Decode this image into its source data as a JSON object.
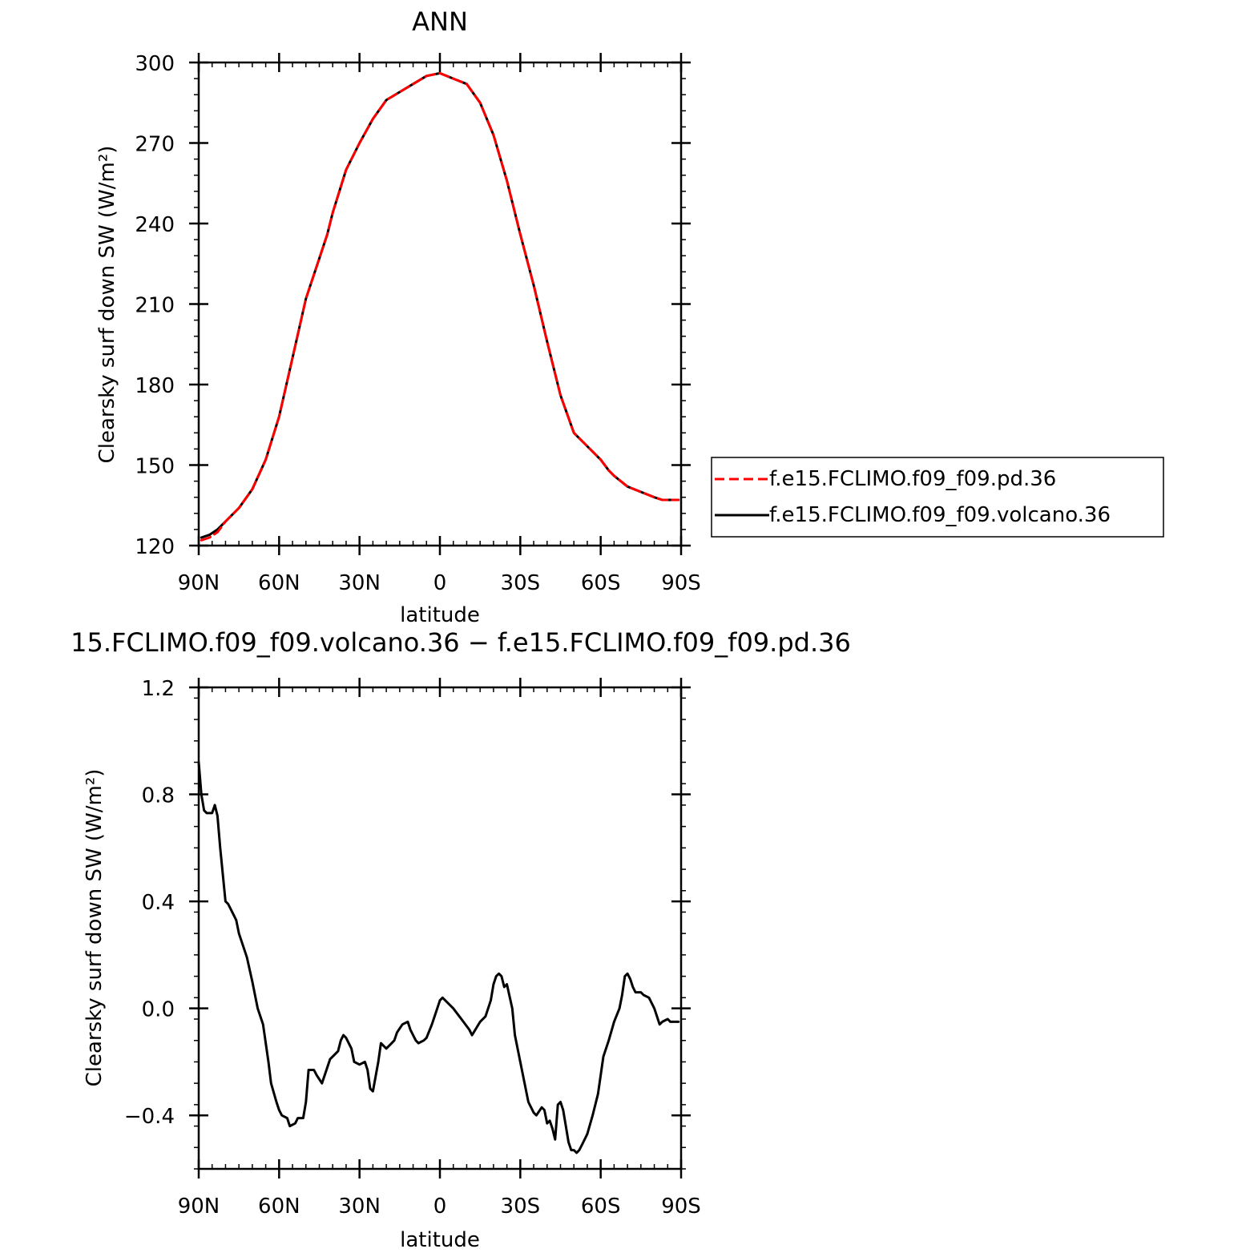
{
  "chart_data": [
    {
      "type": "line",
      "title": "ANN",
      "xlabel": "latitude",
      "ylabel": "Clearsky surf down SW (W/m²)",
      "xlim": [
        90,
        -90
      ],
      "ylim": [
        120,
        300
      ],
      "xticks": [
        {
          "value": 90,
          "label": "90N"
        },
        {
          "value": 60,
          "label": "60N"
        },
        {
          "value": 30,
          "label": "30N"
        },
        {
          "value": 0,
          "label": "0"
        },
        {
          "value": -30,
          "label": "30S"
        },
        {
          "value": -60,
          "label": "60S"
        },
        {
          "value": -90,
          "label": "90S"
        }
      ],
      "yticks": [
        {
          "value": 300,
          "label": "300"
        },
        {
          "value": 270,
          "label": "270"
        },
        {
          "value": 240,
          "label": "240"
        },
        {
          "value": 210,
          "label": "210"
        },
        {
          "value": 180,
          "label": "180"
        },
        {
          "value": 150,
          "label": "150"
        },
        {
          "value": 120,
          "label": "120"
        }
      ],
      "legend_placement": "right",
      "series": [
        {
          "name": "f.e15.FCLIMO.f09_f09.volcano.36",
          "color": "#000000",
          "dash": "solid",
          "x": [
            89,
            86,
            83,
            80,
            75,
            70,
            65,
            60,
            55,
            50,
            45,
            42,
            40,
            35,
            30,
            25,
            20,
            15,
            10,
            5,
            0,
            -5,
            -10,
            -15,
            -20,
            -25,
            -30,
            -35,
            -40,
            -45,
            -50,
            -55,
            -60,
            -63,
            -65,
            -70,
            -75,
            -80,
            -83,
            -85,
            -87,
            -89
          ],
          "values": [
            123,
            124,
            126,
            129,
            134,
            141,
            152,
            168,
            190,
            212,
            227,
            236,
            244,
            260,
            270,
            279,
            286,
            289,
            292,
            295,
            296,
            294,
            292,
            285,
            273,
            256,
            236,
            217,
            196,
            176,
            162,
            157,
            152,
            148,
            146,
            142,
            140,
            138,
            137,
            137,
            137,
            137
          ]
        },
        {
          "name": "f.e15.FCLIMO.f09_f09.pd.36",
          "color": "#ff0000",
          "dash": "dashed",
          "x": [
            89,
            86,
            83,
            80,
            75,
            70,
            65,
            60,
            55,
            50,
            45,
            42,
            40,
            35,
            30,
            25,
            20,
            15,
            10,
            5,
            0,
            -5,
            -10,
            -15,
            -20,
            -25,
            -30,
            -35,
            -40,
            -45,
            -50,
            -55,
            -60,
            -63,
            -65,
            -70,
            -75,
            -80,
            -83,
            -85,
            -87,
            -89
          ],
          "values": [
            122,
            123,
            125,
            129,
            134,
            141,
            152,
            168,
            190,
            212,
            227,
            236,
            244,
            260,
            270,
            279,
            286,
            289,
            292,
            295,
            296,
            294,
            292,
            285,
            273,
            256,
            236,
            217,
            196,
            176,
            162,
            157,
            152,
            148,
            146,
            142,
            140,
            138,
            137,
            137,
            137,
            137
          ]
        }
      ]
    },
    {
      "type": "line",
      "title": "15.FCLIMO.f09_f09.volcano.36 − f.e15.FCLIMO.f09_f09.pd.36",
      "xlabel": "latitude",
      "ylabel": "Clearsky surf down SW (W/m²)",
      "xlim": [
        90,
        -90
      ],
      "ylim": [
        -0.6,
        1.2
      ],
      "xticks": [
        {
          "value": 90,
          "label": "90N"
        },
        {
          "value": 60,
          "label": "60N"
        },
        {
          "value": 30,
          "label": "30N"
        },
        {
          "value": 0,
          "label": "0"
        },
        {
          "value": -30,
          "label": "30S"
        },
        {
          "value": -60,
          "label": "60S"
        },
        {
          "value": -90,
          "label": "90S"
        }
      ],
      "yticks": [
        {
          "value": 1.2,
          "label": "1.2"
        },
        {
          "value": 0.8,
          "label": "0.8"
        },
        {
          "value": 0.4,
          "label": "0.4"
        },
        {
          "value": 0.0,
          "label": "0.0"
        },
        {
          "value": -0.4,
          "label": "−0.4"
        }
      ],
      "series": [
        {
          "color": "#000000",
          "dash": "solid",
          "x": [
            90,
            89,
            88,
            87,
            85,
            84,
            83,
            82,
            81,
            80,
            79,
            77,
            76,
            75,
            73,
            72,
            70,
            68,
            66,
            64,
            63,
            61,
            60,
            59,
            57,
            56,
            54,
            53,
            51,
            50,
            49,
            47,
            46,
            44,
            43,
            41,
            40,
            38,
            37,
            36,
            35,
            33,
            32,
            30,
            28,
            27,
            26,
            25,
            23,
            22,
            20,
            19,
            17,
            16,
            14,
            12,
            11,
            9,
            8,
            6,
            5,
            3,
            1,
            0,
            -1,
            -3,
            -5,
            -8,
            -11,
            -12,
            -15,
            -17,
            -19,
            -20,
            -21,
            -22,
            -23,
            -24,
            -25,
            -27,
            -28,
            -30,
            -33,
            -35,
            -36,
            -38,
            -39,
            -40,
            -41,
            -42,
            -43,
            -44,
            -45,
            -46,
            -47,
            -48,
            -49,
            -50,
            -51,
            -52,
            -53,
            -55,
            -57,
            -59,
            -61,
            -63,
            -65,
            -67,
            -68,
            -69,
            -70,
            -71,
            -72,
            -73,
            -74,
            -75,
            -76,
            -78,
            -80,
            -82,
            -83,
            -85,
            -86,
            -88,
            -89
          ],
          "values": [
            0.92,
            0.8,
            0.74,
            0.73,
            0.73,
            0.76,
            0.72,
            0.6,
            0.5,
            0.4,
            0.39,
            0.35,
            0.33,
            0.28,
            0.22,
            0.19,
            0.1,
            0.0,
            -0.06,
            -0.2,
            -0.28,
            -0.35,
            -0.38,
            -0.4,
            -0.41,
            -0.44,
            -0.43,
            -0.41,
            -0.41,
            -0.35,
            -0.23,
            -0.23,
            -0.25,
            -0.28,
            -0.25,
            -0.19,
            -0.18,
            -0.16,
            -0.12,
            -0.1,
            -0.11,
            -0.15,
            -0.2,
            -0.21,
            -0.2,
            -0.23,
            -0.3,
            -0.31,
            -0.2,
            -0.13,
            -0.15,
            -0.14,
            -0.12,
            -0.09,
            -0.06,
            -0.05,
            -0.08,
            -0.12,
            -0.13,
            -0.12,
            -0.11,
            -0.06,
            0.0,
            0.03,
            0.04,
            0.02,
            0.0,
            -0.04,
            -0.08,
            -0.1,
            -0.05,
            -0.03,
            0.03,
            0.09,
            0.12,
            0.13,
            0.12,
            0.08,
            0.09,
            0.0,
            -0.1,
            -0.2,
            -0.35,
            -0.39,
            -0.4,
            -0.37,
            -0.38,
            -0.43,
            -0.42,
            -0.45,
            -0.49,
            -0.36,
            -0.35,
            -0.38,
            -0.44,
            -0.5,
            -0.53,
            -0.53,
            -0.54,
            -0.53,
            -0.51,
            -0.47,
            -0.4,
            -0.32,
            -0.18,
            -0.12,
            -0.05,
            0.0,
            0.05,
            0.12,
            0.13,
            0.11,
            0.08,
            0.06,
            0.06,
            0.06,
            0.05,
            0.04,
            0.0,
            -0.06,
            -0.05,
            -0.04,
            -0.05,
            -0.05,
            -0.05
          ]
        }
      ]
    }
  ]
}
